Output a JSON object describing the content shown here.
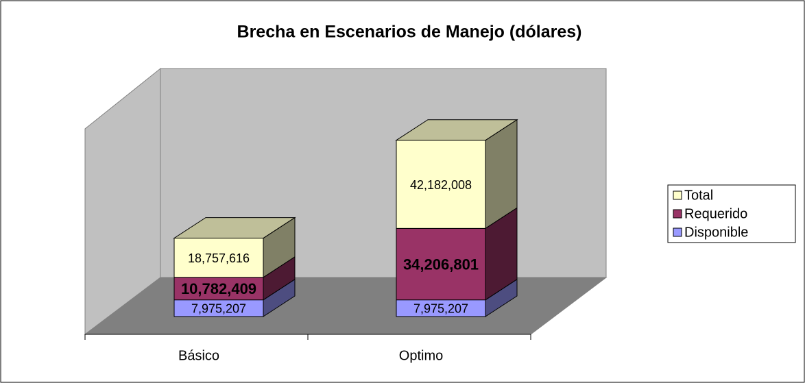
{
  "chart_data": {
    "type": "bar3d_stacked",
    "title": "Brecha en Escenarios de Manejo (dólares)",
    "categories": [
      "Básico",
      "Optimo"
    ],
    "series": [
      {
        "name": "Disponible",
        "color": "#9999ff",
        "values": [
          7975207,
          7975207
        ],
        "value_labels": [
          "7,975,207",
          "7,975,207"
        ]
      },
      {
        "name": "Requerido",
        "color": "#993366",
        "values": [
          10782409,
          34206801
        ],
        "value_labels": [
          "10,782,409",
          "34,206,801"
        ]
      },
      {
        "name": "Total",
        "color": "#ffffcc",
        "values": [
          18757616,
          42182008
        ],
        "value_labels": [
          "18,757,616",
          "42,182,008"
        ]
      }
    ],
    "ylim": [
      0,
      100000000
    ],
    "legend": "right"
  }
}
